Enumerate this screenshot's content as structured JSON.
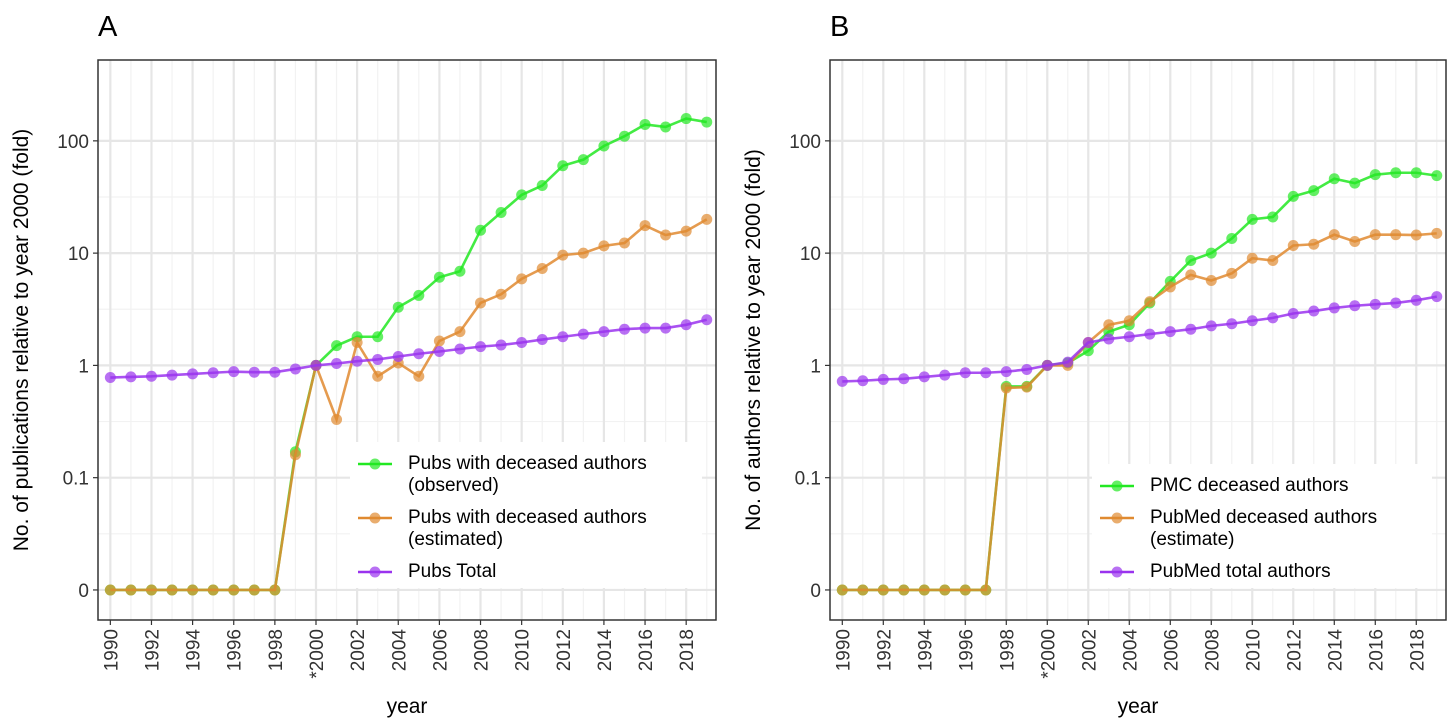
{
  "chart_data": [
    {
      "type": "line",
      "tag": "A",
      "xlabel": "year",
      "ylabel": "No. of publications relative to year 2000 (fold)",
      "yscale": "log",
      "grid": true,
      "legend": "bottom-right",
      "x": [
        1990,
        1991,
        1992,
        1993,
        1994,
        1995,
        1996,
        1997,
        1998,
        1999,
        2000,
        2001,
        2002,
        2003,
        2004,
        2005,
        2006,
        2007,
        2008,
        2009,
        2010,
        2011,
        2012,
        2013,
        2014,
        2015,
        2016,
        2017,
        2018,
        2019
      ],
      "xlim": [
        1989.4,
        2019.45
      ],
      "xticks": [
        1990,
        1992,
        1994,
        1996,
        1998,
        {
          "value": 2000,
          "label": "*2000"
        },
        2002,
        2004,
        2006,
        2008,
        2010,
        2012,
        2014,
        2016,
        2018
      ],
      "ylim": [
        0.0054,
        525
      ],
      "yticks": [
        {
          "value": 0.01,
          "label": "0"
        },
        0.1,
        1,
        10,
        100
      ],
      "series": [
        {
          "name": "Pubs with deceased authors\n(observed)",
          "color": "#22e822",
          "values": [
            0.01,
            0.01,
            0.01,
            0.01,
            0.01,
            0.01,
            0.01,
            0.01,
            0.01,
            0.17,
            1,
            1.5,
            1.8,
            1.8,
            3.3,
            4.2,
            6.1,
            6.9,
            16,
            23,
            33,
            40,
            60,
            68,
            90,
            110,
            140,
            133,
            158,
            147
          ]
        },
        {
          "name": "Pubs with deceased authors\n(estimated)",
          "color": "#e08a30",
          "values": [
            0.01,
            0.01,
            0.01,
            0.01,
            0.01,
            0.01,
            0.01,
            0.01,
            0.01,
            0.16,
            1,
            0.33,
            1.6,
            0.8,
            1.05,
            0.8,
            1.65,
            2.0,
            3.6,
            4.3,
            5.9,
            7.3,
            9.6,
            10,
            11.6,
            12.3,
            17.6,
            14.5,
            15.7,
            20
          ]
        },
        {
          "name": "Pubs Total",
          "color": "#9a33ee",
          "values": [
            0.78,
            0.79,
            0.8,
            0.82,
            0.84,
            0.86,
            0.88,
            0.87,
            0.87,
            0.93,
            1,
            1.04,
            1.09,
            1.13,
            1.2,
            1.27,
            1.33,
            1.4,
            1.47,
            1.52,
            1.6,
            1.7,
            1.8,
            1.9,
            2.0,
            2.1,
            2.15,
            2.15,
            2.3,
            2.55
          ]
        }
      ]
    },
    {
      "type": "line",
      "tag": "B",
      "xlabel": "year",
      "ylabel": "No. of authors relative to year 2000 (fold)",
      "yscale": "log",
      "grid": true,
      "legend": "bottom-right",
      "x": [
        1990,
        1991,
        1992,
        1993,
        1994,
        1995,
        1996,
        1997,
        1998,
        1999,
        2000,
        2001,
        2002,
        2003,
        2004,
        2005,
        2006,
        2007,
        2008,
        2009,
        2010,
        2011,
        2012,
        2013,
        2014,
        2015,
        2016,
        2017,
        2018,
        2019
      ],
      "xlim": [
        1989.4,
        2019.45
      ],
      "xticks": [
        1990,
        1992,
        1994,
        1996,
        1998,
        {
          "value": 2000,
          "label": "*2000"
        },
        2002,
        2004,
        2006,
        2008,
        2010,
        2012,
        2014,
        2016,
        2018
      ],
      "ylim": [
        0.0054,
        525
      ],
      "yticks": [
        {
          "value": 0.01,
          "label": "0"
        },
        0.1,
        1,
        10,
        100
      ],
      "series": [
        {
          "name": "PMC deceased authors",
          "color": "#22e822",
          "values": [
            0.01,
            0.01,
            0.01,
            0.01,
            0.01,
            0.01,
            0.01,
            0.01,
            0.65,
            0.65,
            1,
            1.05,
            1.35,
            2.0,
            2.3,
            3.6,
            5.6,
            8.6,
            10,
            13.5,
            20,
            21,
            32,
            36,
            46,
            42,
            50,
            52,
            52,
            49
          ]
        },
        {
          "name": "PubMed deceased authors\n(estimate)",
          "color": "#e08a30",
          "values": [
            0.01,
            0.01,
            0.01,
            0.01,
            0.01,
            0.01,
            0.01,
            0.01,
            0.63,
            0.64,
            1,
            1.0,
            1.6,
            2.3,
            2.5,
            3.7,
            5.0,
            6.4,
            5.7,
            6.6,
            9,
            8.6,
            11.7,
            12,
            14.6,
            12.7,
            14.6,
            14.6,
            14.5,
            15
          ]
        },
        {
          "name": "PubMed total authors",
          "color": "#9a33ee",
          "values": [
            0.72,
            0.73,
            0.75,
            0.76,
            0.79,
            0.82,
            0.86,
            0.86,
            0.88,
            0.92,
            1,
            1.07,
            1.6,
            1.72,
            1.8,
            1.9,
            2.0,
            2.1,
            2.25,
            2.35,
            2.5,
            2.65,
            2.9,
            3.05,
            3.25,
            3.4,
            3.5,
            3.6,
            3.8,
            4.1
          ]
        }
      ]
    }
  ]
}
